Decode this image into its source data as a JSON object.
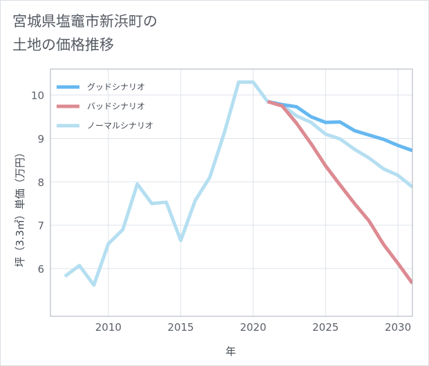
{
  "chart_title": {
    "line1": "宮城県塩竈市新浜町の",
    "line2": "土地の価格推移"
  },
  "chart_data": {
    "type": "line",
    "xlabel": "年",
    "ylabel": "坪（3.3㎡）単価（万円）",
    "xlim": [
      2006,
      2031
    ],
    "ylim": [
      4.9,
      10.6
    ],
    "x_ticks": [
      2010,
      2015,
      2020,
      2025,
      2030
    ],
    "y_ticks": [
      6,
      7,
      8,
      9,
      10
    ],
    "grid": true,
    "legend_position": "top-left",
    "series": [
      {
        "name": "グッドシナリオ",
        "color": "#66b8f0",
        "points": [
          [
            2021,
            9.85
          ],
          [
            2022,
            9.78
          ],
          [
            2023,
            9.73
          ],
          [
            2024,
            9.5
          ],
          [
            2025,
            9.37
          ],
          [
            2026,
            9.38
          ],
          [
            2027,
            9.18
          ],
          [
            2028,
            9.08
          ],
          [
            2029,
            8.98
          ],
          [
            2030,
            8.84
          ],
          [
            2031,
            8.72
          ]
        ]
      },
      {
        "name": "バッドシナリオ",
        "color": "#dd8a92",
        "points": [
          [
            2021,
            9.85
          ],
          [
            2022,
            9.75
          ],
          [
            2023,
            9.35
          ],
          [
            2024,
            8.88
          ],
          [
            2025,
            8.37
          ],
          [
            2026,
            7.93
          ],
          [
            2027,
            7.5
          ],
          [
            2028,
            7.1
          ],
          [
            2029,
            6.56
          ],
          [
            2030,
            6.12
          ],
          [
            2031,
            5.66
          ]
        ]
      },
      {
        "name": "ノーマルシナリオ",
        "color": "#b5dff1",
        "points": [
          [
            2007,
            5.82
          ],
          [
            2008,
            6.07
          ],
          [
            2009,
            5.62
          ],
          [
            2010,
            6.57
          ],
          [
            2011,
            6.9
          ],
          [
            2012,
            7.95
          ],
          [
            2013,
            7.5
          ],
          [
            2014,
            7.53
          ],
          [
            2015,
            6.65
          ],
          [
            2016,
            7.57
          ],
          [
            2017,
            8.1
          ],
          [
            2018,
            9.12
          ],
          [
            2019,
            10.3
          ],
          [
            2020,
            10.3
          ],
          [
            2021,
            9.85
          ],
          [
            2022,
            9.77
          ],
          [
            2023,
            9.52
          ],
          [
            2024,
            9.37
          ],
          [
            2025,
            9.1
          ],
          [
            2026,
            8.99
          ],
          [
            2027,
            8.75
          ],
          [
            2028,
            8.55
          ],
          [
            2029,
            8.3
          ],
          [
            2030,
            8.15
          ],
          [
            2031,
            7.88
          ]
        ]
      }
    ]
  },
  "colors": {
    "grid": "#dde3ea",
    "axis_text": "#5a5f68",
    "title_text": "#555a63"
  }
}
